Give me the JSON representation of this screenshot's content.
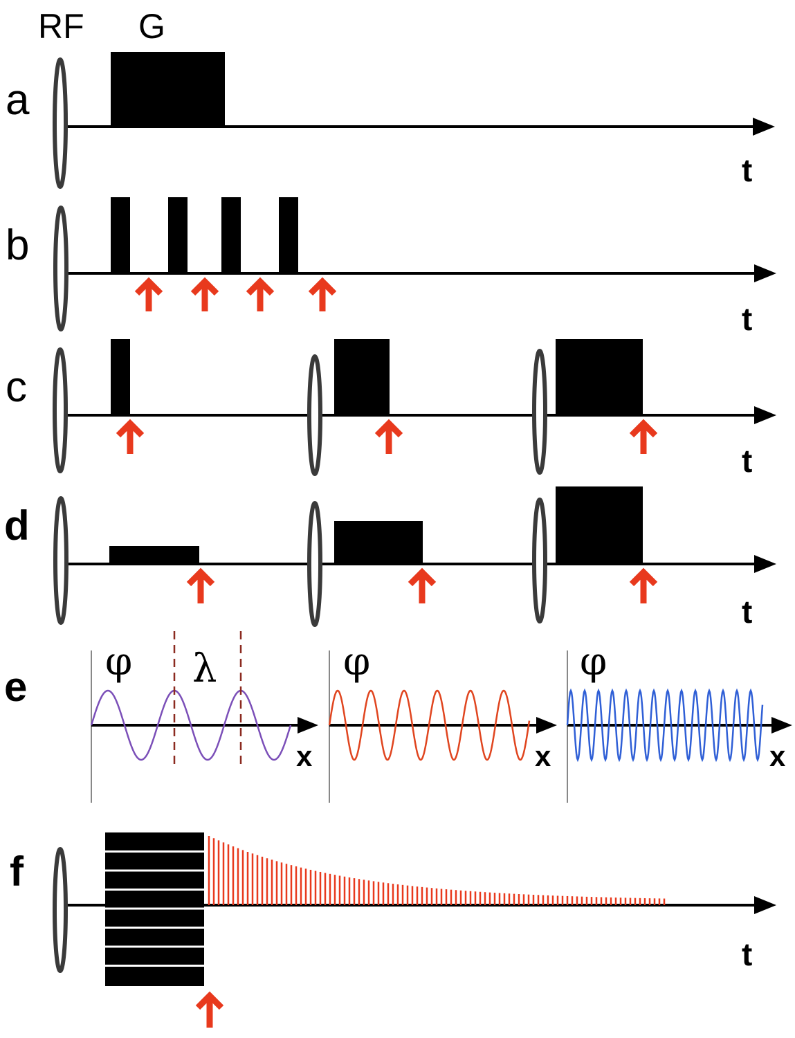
{
  "header": {
    "rf_label": "RF",
    "g_label": "G"
  },
  "panels": {
    "a": {
      "letter": "a",
      "time_label": "t"
    },
    "b": {
      "letter": "b",
      "time_label": "t"
    },
    "c": {
      "letter": "c",
      "time_label": "t"
    },
    "d": {
      "letter": "d",
      "time_label": "t"
    },
    "e": {
      "letter": "e",
      "plots": [
        {
          "phase_label": "φ",
          "axis_label": "x",
          "wavelength_label": "λ",
          "color": "#7b4fb8"
        },
        {
          "phase_label": "φ",
          "axis_label": "x",
          "color": "#e0451f"
        },
        {
          "phase_label": "φ",
          "axis_label": "x",
          "color": "#2f5fd6"
        }
      ]
    },
    "f": {
      "letter": "f",
      "time_label": "t"
    }
  },
  "colors": {
    "gradient": "#000000",
    "marker_arrow": "#e8391d",
    "rf_pulse_outline": "#3a3a3a"
  }
}
